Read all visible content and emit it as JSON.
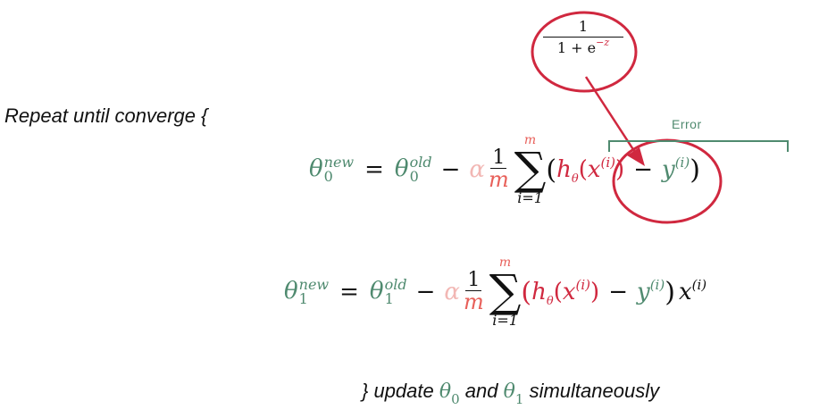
{
  "repeat_label": "Repeat until converge {",
  "footer": {
    "prefix": "} update",
    "theta0_sub": "0",
    "and": "and",
    "theta1_sub": "1",
    "suffix": "simultaneously"
  },
  "callout": {
    "numerator": "1",
    "denominator_base": "1 + e",
    "exponent": "−z"
  },
  "error_label": "Error",
  "eq0": {
    "lhs_sub": "0",
    "lhs_sup": "new",
    "rhs_sub": "0",
    "rhs_sup": "old",
    "alpha": "α",
    "frac_num": "1",
    "frac_den": "m",
    "sum_top": "m",
    "sum_bot": "i=1",
    "h_sub": "θ",
    "x_sup": "(i)",
    "y_sup": "(i)"
  },
  "eq1": {
    "lhs_sub": "1",
    "lhs_sup": "new",
    "rhs_sub": "1",
    "rhs_sup": "old",
    "alpha": "α",
    "frac_num": "1",
    "frac_den": "m",
    "sum_top": "m",
    "sum_bot": "i=1",
    "h_sub": "θ",
    "x_sup": "(i)",
    "y_sup": "(i)",
    "tail_sup": "(i)"
  },
  "colors": {
    "theta": "#4f8a6f",
    "hypothesis": "#d0283f",
    "alpha": "#f2b7b4",
    "m": "#e8605a",
    "annotation": "#d0283f"
  }
}
